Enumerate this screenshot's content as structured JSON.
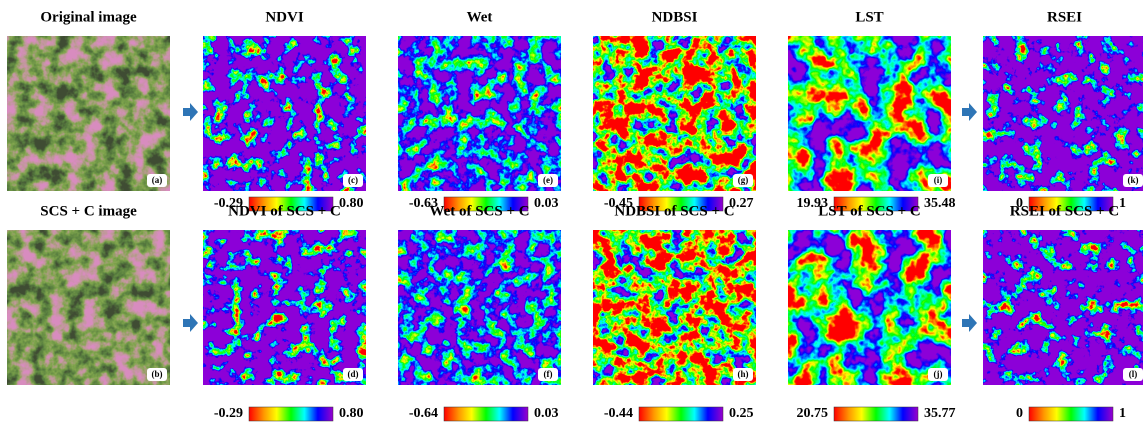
{
  "rows": [
    {
      "panels": [
        {
          "title": "Original image",
          "label": "(a)"
        },
        {
          "title": "NDVI",
          "label": "(c)",
          "colorbar": {
            "min": "-0.29",
            "max": "0.80"
          }
        },
        {
          "title": "Wet",
          "label": "(e)",
          "colorbar": {
            "min": "-0.63",
            "max": "0.03"
          }
        },
        {
          "title": "NDBSI",
          "label": "(g)",
          "colorbar": {
            "min": "-0.45",
            "max": "0.27"
          }
        },
        {
          "title": "LST",
          "label": "(i)",
          "colorbar": {
            "min": "19.93",
            "max": "35.48"
          }
        },
        {
          "title": "RSEI",
          "label": "(k)",
          "colorbar": {
            "min": "0",
            "max": "1"
          }
        }
      ]
    },
    {
      "panels": [
        {
          "title": "SCS + C image",
          "label": "(b)"
        },
        {
          "title": "NDVI of SCS + C",
          "label": "(d)",
          "colorbar": {
            "min": "-0.29",
            "max": "0.80"
          }
        },
        {
          "title": "Wet of SCS + C",
          "label": "(f)",
          "colorbar": {
            "min": "-0.64",
            "max": "0.03"
          }
        },
        {
          "title": "NDBSI of SCS + C",
          "label": "(h)",
          "colorbar": {
            "min": "-0.44",
            "max": "0.25"
          }
        },
        {
          "title": "LST of SCS + C",
          "label": "(j)",
          "colorbar": {
            "min": "20.75",
            "max": "35.77"
          }
        },
        {
          "title": "RSEI of SCS + C",
          "label": "(l)",
          "colorbar": {
            "min": "0",
            "max": "1"
          }
        }
      ]
    }
  ]
}
